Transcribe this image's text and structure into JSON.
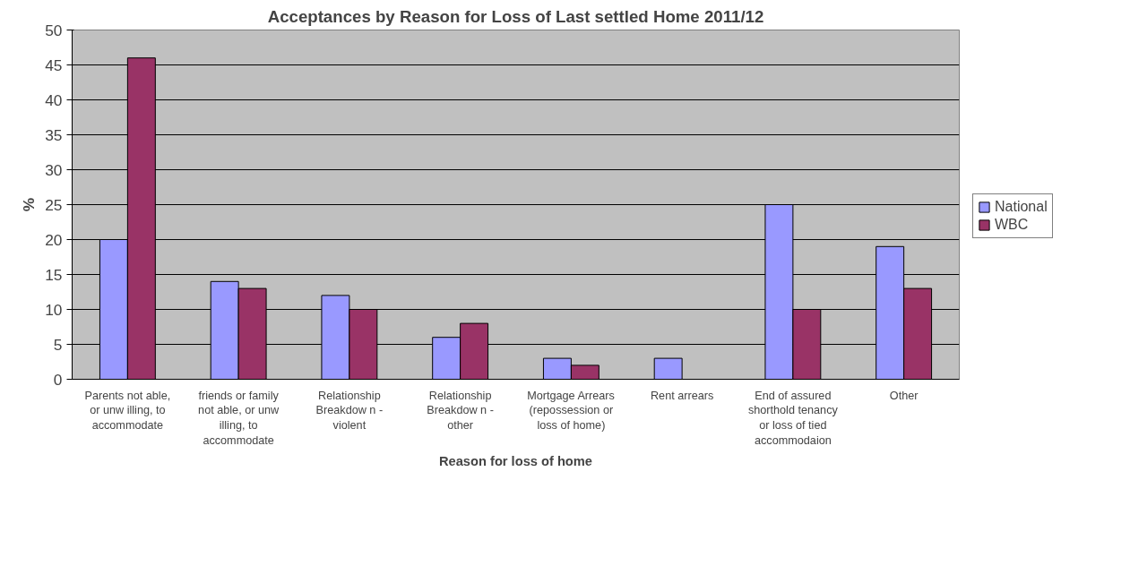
{
  "chart_data": {
    "type": "bar",
    "title": "Acceptances by Reason for Loss of Last settled Home 2011/12",
    "xlabel": "Reason for loss of home",
    "ylabel": "%",
    "categories": [
      "Parents not able, or unw illing, to accommodate",
      "friends or family not able, or unw illing, to accommodate",
      "Relationship Breakdow n - violent",
      "Relationship Breakdow n - other",
      "Mortgage Arrears (repossession or loss of home)",
      "Rent arrears",
      "End of assured shorthold tenancy or loss of tied accommodaion",
      "Other"
    ],
    "series": [
      {
        "name": "National",
        "color": "#9999ff",
        "values": [
          20,
          14,
          12,
          6,
          3,
          3,
          25,
          19
        ]
      },
      {
        "name": "WBC",
        "color": "#993366",
        "values": [
          46,
          13,
          10,
          8,
          2,
          null,
          10,
          13
        ]
      }
    ],
    "ylim": [
      0,
      50
    ],
    "yticks": [
      0,
      5,
      10,
      15,
      20,
      25,
      30,
      35,
      40,
      45,
      50
    ],
    "grid": "y",
    "legend": "right"
  }
}
